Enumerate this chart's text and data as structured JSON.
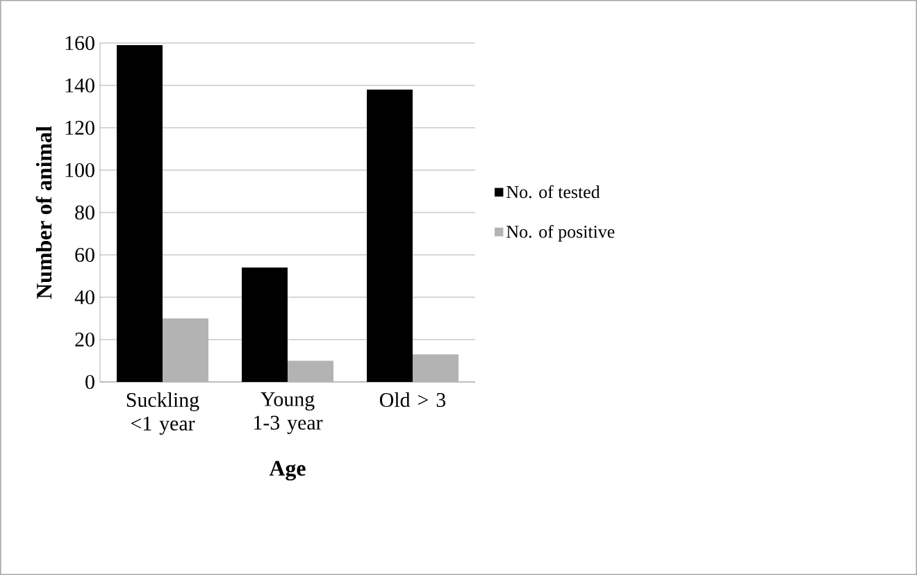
{
  "chart_data": {
    "type": "bar",
    "xlabel": "Age",
    "ylabel": "Number of animal",
    "categories": [
      "Suckling <1 year",
      "Young 1-3 year",
      "Old > 3"
    ],
    "series": [
      {
        "name": "No. of tested",
        "color": "#000000",
        "values": [
          159,
          54,
          138
        ]
      },
      {
        "name": "No. of positive",
        "color": "#b3b3b3",
        "values": [
          30,
          10,
          13
        ]
      }
    ],
    "ylim": [
      0,
      160
    ],
    "yticks": [
      0,
      20,
      40,
      60,
      80,
      100,
      120,
      140,
      160
    ],
    "grid": "y",
    "legend": "right"
  }
}
